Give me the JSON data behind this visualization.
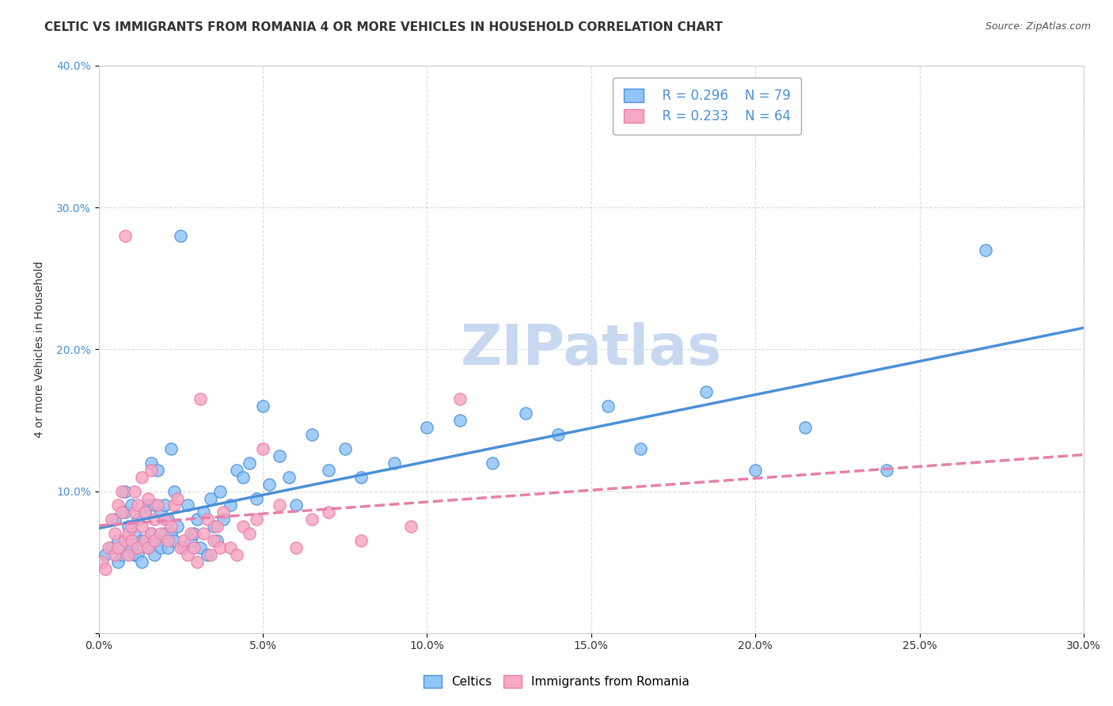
{
  "title": "CELTIC VS IMMIGRANTS FROM ROMANIA 4 OR MORE VEHICLES IN HOUSEHOLD CORRELATION CHART",
  "source": "Source: ZipAtlas.com",
  "xlabel": "",
  "ylabel": "4 or more Vehicles in Household",
  "xlim": [
    0.0,
    0.3
  ],
  "ylim": [
    0.0,
    0.4
  ],
  "xticks": [
    0.0,
    0.05,
    0.1,
    0.15,
    0.2,
    0.25,
    0.3
  ],
  "yticks": [
    0.0,
    0.1,
    0.2,
    0.3,
    0.4
  ],
  "xtick_labels": [
    "0.0%",
    "5.0%",
    "10.0%",
    "15.0%",
    "20.0%",
    "25.0%",
    "30.0%"
  ],
  "ytick_labels": [
    "",
    "10.0%",
    "20.0%",
    "30.0%",
    "40.0%"
  ],
  "legend1_r": "R = 0.296",
  "legend1_n": "N = 79",
  "legend2_r": "R = 0.233",
  "legend2_n": "N = 64",
  "celtics_color": "#92C5F7",
  "romania_color": "#F7A8C4",
  "celtics_line_color": "#4A90D9",
  "romania_line_color": "#E87FAA",
  "watermark": "ZIPatlas",
  "watermark_color": "#C8D8F0",
  "background_color": "#FFFFFF",
  "grid_color": "#CCCCCC",
  "celtics_x": [
    0.002,
    0.004,
    0.005,
    0.006,
    0.006,
    0.007,
    0.008,
    0.008,
    0.009,
    0.01,
    0.01,
    0.011,
    0.011,
    0.012,
    0.012,
    0.013,
    0.013,
    0.014,
    0.014,
    0.015,
    0.015,
    0.016,
    0.016,
    0.017,
    0.017,
    0.018,
    0.018,
    0.019,
    0.019,
    0.02,
    0.02,
    0.021,
    0.021,
    0.022,
    0.022,
    0.023,
    0.023,
    0.024,
    0.025,
    0.026,
    0.027,
    0.028,
    0.029,
    0.03,
    0.031,
    0.032,
    0.033,
    0.034,
    0.035,
    0.036,
    0.037,
    0.038,
    0.04,
    0.042,
    0.044,
    0.046,
    0.048,
    0.05,
    0.052,
    0.055,
    0.058,
    0.06,
    0.065,
    0.07,
    0.075,
    0.08,
    0.09,
    0.1,
    0.11,
    0.12,
    0.13,
    0.14,
    0.155,
    0.165,
    0.185,
    0.2,
    0.215,
    0.24,
    0.27
  ],
  "celtics_y": [
    0.055,
    0.06,
    0.08,
    0.05,
    0.065,
    0.055,
    0.1,
    0.085,
    0.075,
    0.09,
    0.06,
    0.055,
    0.07,
    0.08,
    0.055,
    0.065,
    0.05,
    0.085,
    0.065,
    0.09,
    0.06,
    0.07,
    0.12,
    0.055,
    0.09,
    0.115,
    0.065,
    0.06,
    0.085,
    0.07,
    0.09,
    0.06,
    0.08,
    0.13,
    0.07,
    0.065,
    0.1,
    0.075,
    0.28,
    0.06,
    0.09,
    0.065,
    0.07,
    0.08,
    0.06,
    0.085,
    0.055,
    0.095,
    0.075,
    0.065,
    0.1,
    0.08,
    0.09,
    0.115,
    0.11,
    0.12,
    0.095,
    0.16,
    0.105,
    0.125,
    0.11,
    0.09,
    0.14,
    0.115,
    0.13,
    0.11,
    0.12,
    0.145,
    0.15,
    0.12,
    0.155,
    0.14,
    0.16,
    0.13,
    0.17,
    0.115,
    0.145,
    0.115,
    0.27
  ],
  "romania_x": [
    0.001,
    0.002,
    0.003,
    0.004,
    0.005,
    0.005,
    0.006,
    0.006,
    0.007,
    0.007,
    0.008,
    0.008,
    0.009,
    0.009,
    0.01,
    0.01,
    0.011,
    0.011,
    0.012,
    0.012,
    0.013,
    0.013,
    0.014,
    0.014,
    0.015,
    0.015,
    0.016,
    0.016,
    0.017,
    0.017,
    0.018,
    0.019,
    0.02,
    0.021,
    0.022,
    0.023,
    0.024,
    0.025,
    0.026,
    0.027,
    0.028,
    0.029,
    0.03,
    0.031,
    0.032,
    0.033,
    0.034,
    0.035,
    0.036,
    0.037,
    0.038,
    0.04,
    0.042,
    0.044,
    0.046,
    0.048,
    0.05,
    0.055,
    0.06,
    0.065,
    0.07,
    0.08,
    0.095,
    0.11
  ],
  "romania_y": [
    0.05,
    0.045,
    0.06,
    0.08,
    0.055,
    0.07,
    0.09,
    0.06,
    0.085,
    0.1,
    0.065,
    0.28,
    0.07,
    0.055,
    0.075,
    0.065,
    0.085,
    0.1,
    0.06,
    0.09,
    0.075,
    0.11,
    0.065,
    0.085,
    0.095,
    0.06,
    0.07,
    0.115,
    0.08,
    0.065,
    0.09,
    0.07,
    0.08,
    0.065,
    0.075,
    0.09,
    0.095,
    0.06,
    0.065,
    0.055,
    0.07,
    0.06,
    0.05,
    0.165,
    0.07,
    0.08,
    0.055,
    0.065,
    0.075,
    0.06,
    0.085,
    0.06,
    0.055,
    0.075,
    0.07,
    0.08,
    0.13,
    0.09,
    0.06,
    0.08,
    0.085,
    0.065,
    0.075,
    0.165
  ],
  "title_fontsize": 11,
  "axis_label_fontsize": 10,
  "tick_fontsize": 10,
  "legend_fontsize": 12,
  "watermark_fontsize": 52
}
